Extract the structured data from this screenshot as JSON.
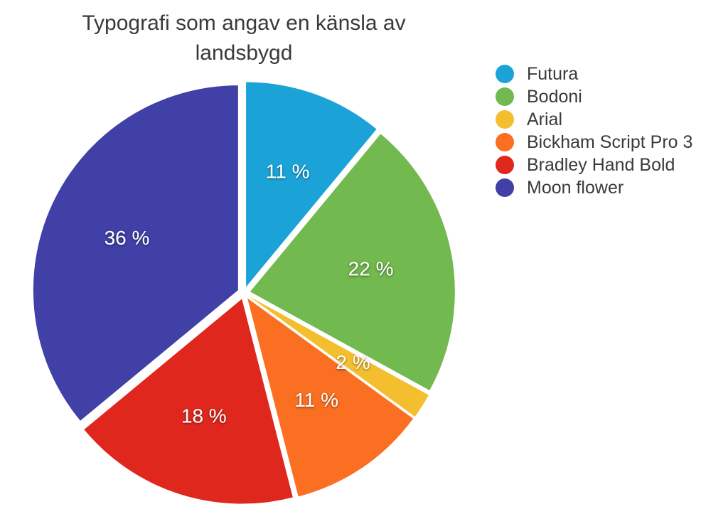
{
  "chart_data": {
    "type": "pie",
    "title_lines": [
      "Typografi som angav en känsla av",
      "landsbygd"
    ],
    "legend_placement": "right",
    "slices": [
      {
        "name": "Futura",
        "value": 11,
        "label": "11 %",
        "color": "#1ba3d8"
      },
      {
        "name": "Bodoni",
        "value": 22,
        "label": "22 %",
        "color": "#72b94f"
      },
      {
        "name": "Arial",
        "value": 2,
        "label": "2 %",
        "color": "#f4bf2f"
      },
      {
        "name": "Bickham Script Pro 3",
        "value": 11,
        "label": "11 %",
        "color": "#fb6f22"
      },
      {
        "name": "Bradley Hand Bold",
        "value": 18,
        "label": "18 %",
        "color": "#e0271d"
      },
      {
        "name": "Moon flower",
        "value": 36,
        "label": "36 %",
        "color": "#4040a6"
      }
    ]
  }
}
